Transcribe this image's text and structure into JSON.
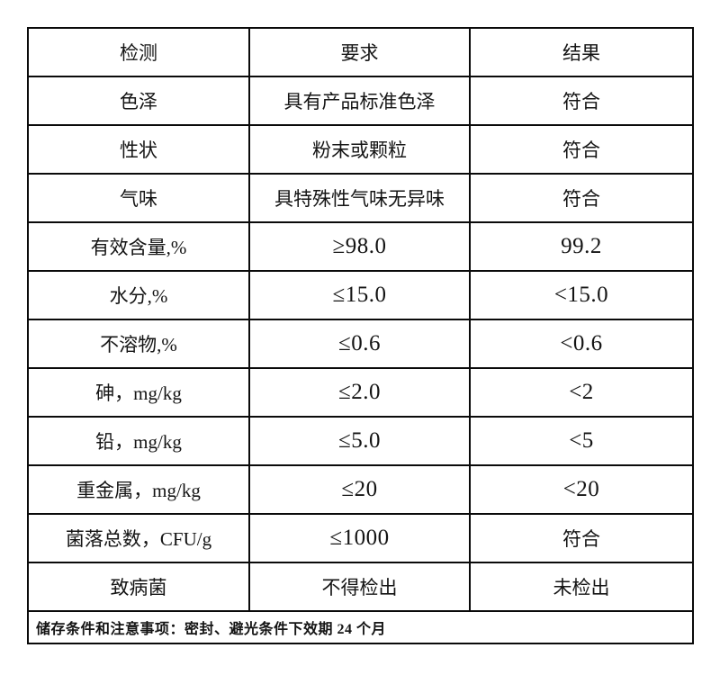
{
  "table": {
    "headers": [
      "检测",
      "要求",
      "结果"
    ],
    "rows": [
      {
        "item": "色泽",
        "requirement": "具有产品标准色泽",
        "result": "符合"
      },
      {
        "item": "性状",
        "requirement": "粉末或颗粒",
        "result": "符合"
      },
      {
        "item": "气味",
        "requirement": "具特殊性气味无异味",
        "result": "符合"
      },
      {
        "item": "有效含量,%",
        "requirement": "≥98.0",
        "result": "99.2"
      },
      {
        "item": "水分,%",
        "requirement": "≤15.0",
        "result": "<15.0"
      },
      {
        "item": "不溶物,%",
        "requirement": "≤0.6",
        "result": "<0.6"
      },
      {
        "item": "砷，mg/kg",
        "requirement": "≤2.0",
        "result": "<2"
      },
      {
        "item": "铅，mg/kg",
        "requirement": "≤5.0",
        "result": "<5"
      },
      {
        "item": "重金属，mg/kg",
        "requirement": "≤20",
        "result": "<20"
      },
      {
        "item": "菌落总数，CFU/g",
        "requirement": "≤1000",
        "result": "符合"
      },
      {
        "item": "致病菌",
        "requirement": "不得检出",
        "result": "未检出"
      }
    ],
    "footer": "储存条件和注意事项：密封、避光条件下效期 24 个月"
  }
}
